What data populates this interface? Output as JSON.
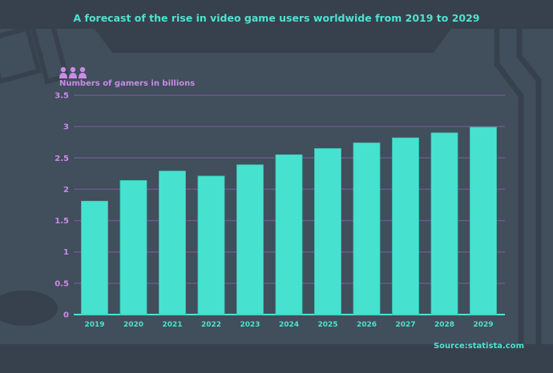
{
  "chart_data": {
    "type": "bar",
    "title": "A forecast of the rise in video game users worldwide from 2019 to 2029",
    "ylabel": "Numbers of gamers in billions",
    "xlabel": "",
    "categories": [
      "2019",
      "2020",
      "2021",
      "2022",
      "2023",
      "2024",
      "2025",
      "2026",
      "2027",
      "2028",
      "2029"
    ],
    "values": [
      1.81,
      2.14,
      2.29,
      2.21,
      2.39,
      2.55,
      2.65,
      2.74,
      2.82,
      2.9,
      2.99
    ],
    "ylim": [
      0,
      3.5
    ],
    "yticks": [
      "0",
      "0.5",
      "1",
      "1.5",
      "2",
      "2.5",
      "3",
      "3.5"
    ],
    "grid": true,
    "legend": "none",
    "colors": {
      "bar": "#47e2cf",
      "grid": "#6a5a8a",
      "tick_text": "#c98be8",
      "xtick_text": "#4de3cf",
      "title": "#4de3cf"
    }
  },
  "source": "Source:statista.com",
  "icons": {
    "ylabel_icon": "people-group-icon"
  }
}
